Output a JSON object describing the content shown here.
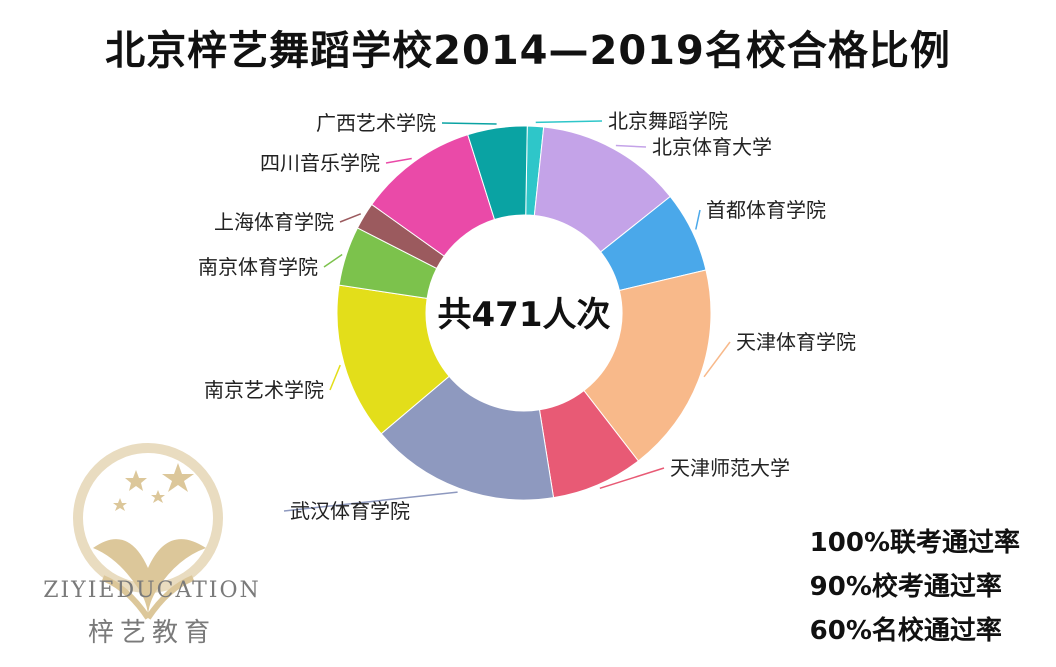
{
  "title": "北京梓艺舞蹈学校2014—2019名校合格比例",
  "chart_data": {
    "type": "pie",
    "total_label": "共471人次",
    "slices": [
      {
        "name": "北京舞蹈学院",
        "value": 1.5,
        "color": "#2ec6c9"
      },
      {
        "name": "北京体育大学",
        "value": 13.5,
        "color": "#c4a3e8"
      },
      {
        "name": "首都体育学院",
        "value": 7.5,
        "color": "#4aa8ea"
      },
      {
        "name": "天津体育学院",
        "value": 19.5,
        "color": "#f8b98a"
      },
      {
        "name": "天津师范大学",
        "value": 8.5,
        "color": "#e85a75"
      },
      {
        "name": "武汉体育学院",
        "value": 17.5,
        "color": "#8e99bf"
      },
      {
        "name": "南京艺术学院",
        "value": 14.5,
        "color": "#e3de1a"
      },
      {
        "name": "南京体育学院",
        "value": 5.5,
        "color": "#7cc24c"
      },
      {
        "name": "上海体育学院",
        "value": 2.5,
        "color": "#9b5a5e"
      },
      {
        "name": "四川音乐学院",
        "value": 11.0,
        "color": "#ea4aa8"
      },
      {
        "name": "广西艺术学院",
        "value": 5.5,
        "color": "#0aa3a3"
      }
    ]
  },
  "stats": [
    "100%联考通过率",
    "90%校考通过率",
    "60%名校通过率"
  ],
  "logo": {
    "en": "ZIYIEDUCATION",
    "cn": "梓艺教育"
  }
}
